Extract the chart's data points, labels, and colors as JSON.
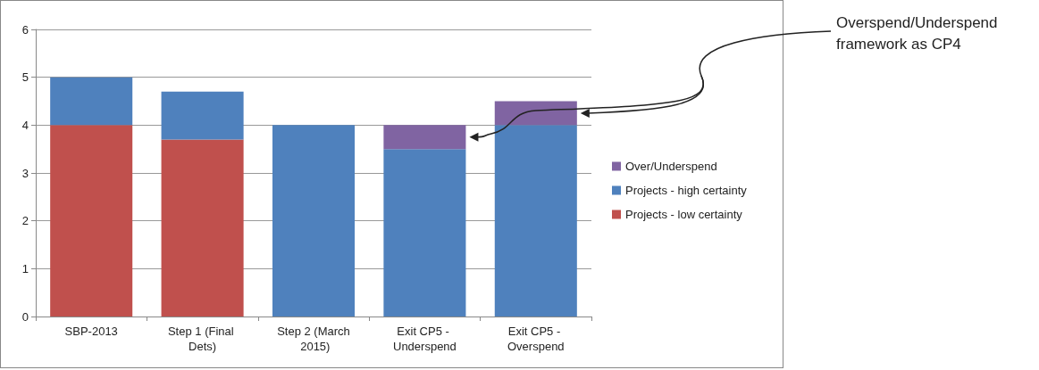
{
  "chart_data": {
    "type": "bar",
    "stacked": true,
    "categories": [
      "SBP-2013",
      "Step 1 (Final Dets)",
      "Step 2 (March 2015)",
      "Exit CP5 - Underspend",
      "Exit CP5 - Overspend"
    ],
    "series": [
      {
        "name": "Projects - low certainty",
        "color": "#c0504d",
        "values": [
          4,
          3.7,
          0,
          0,
          0
        ]
      },
      {
        "name": "Projects - high certainty",
        "color": "#4f81bd",
        "values": [
          1,
          1,
          4,
          3.5,
          4
        ]
      },
      {
        "name": "Over/Underspend",
        "color": "#8064a2",
        "values": [
          0,
          0,
          0,
          0.5,
          0.5
        ]
      }
    ],
    "ylim": [
      0,
      6
    ],
    "yticks": [
      0,
      1,
      2,
      3,
      4,
      5,
      6
    ],
    "grid": "y",
    "legend": "right",
    "annotations": [
      "Overspend/Underspend framework as CP4"
    ]
  }
}
